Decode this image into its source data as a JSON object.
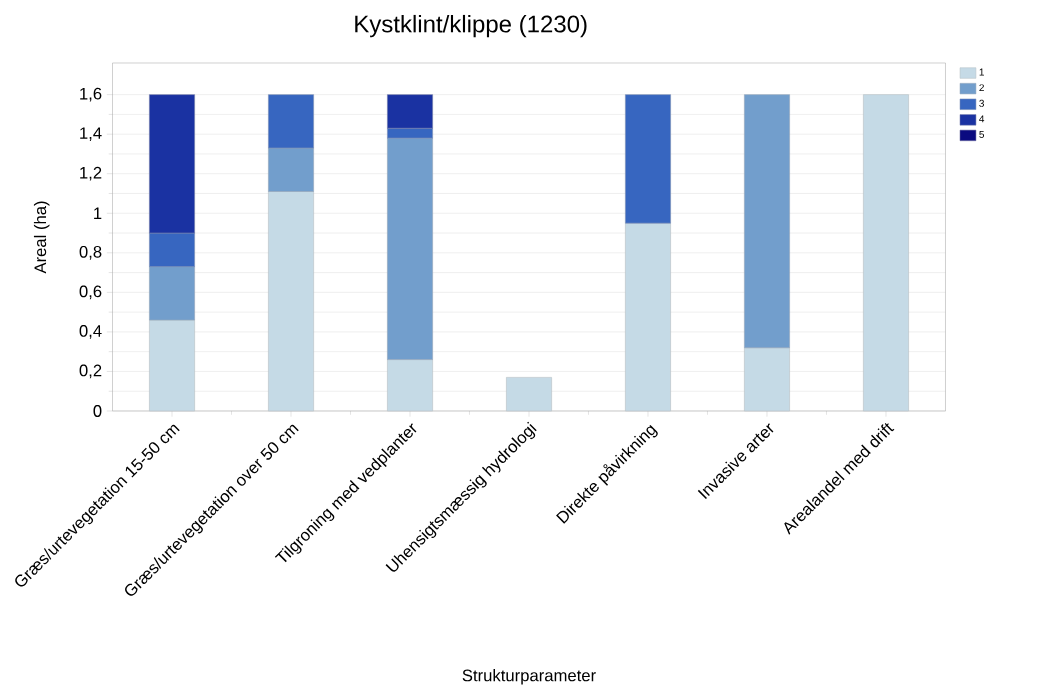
{
  "chart_data": {
    "type": "bar",
    "title": "Kystklint/klippe (1230)",
    "xlabel": "Strukturparameter",
    "ylabel": "Areal (ha)",
    "categories": [
      "Græs/urtevegetation 15-50 cm",
      "Græs/urtevegetation over 50 cm",
      "Tilgroning med vedplanter",
      "Uhensigtsmæssig hydrologi",
      "Direkte påvirkning",
      "Invasive arter",
      "Arealandel med drift"
    ],
    "stacked": true,
    "series": [
      {
        "name": "1",
        "color": "#c5dae6",
        "values": [
          0.46,
          1.11,
          0.26,
          0.17,
          0.95,
          0.32,
          1.6
        ]
      },
      {
        "name": "2",
        "color": "#729ecc",
        "values": [
          0.27,
          0.22,
          1.12,
          null,
          null,
          1.28,
          null
        ]
      },
      {
        "name": "3",
        "color": "#3766c0",
        "values": [
          0.17,
          0.27,
          0.05,
          null,
          0.65,
          null,
          null
        ]
      },
      {
        "name": "4",
        "color": "#1a32a2",
        "values": [
          0.7,
          null,
          0.17,
          null,
          null,
          null,
          null
        ]
      },
      {
        "name": "5",
        "color": "#0a0a80",
        "values": [
          null,
          null,
          null,
          null,
          null,
          null,
          null
        ]
      }
    ],
    "ylim": [
      0,
      1.76
    ],
    "yticks": [
      0,
      {
        "value": 0.2,
        "label": "0,2"
      },
      {
        "value": 0.4,
        "label": "0,4"
      },
      {
        "value": 0.6,
        "label": "0,6"
      },
      {
        "value": 0.8,
        "label": "0,8"
      },
      1,
      {
        "value": 1.2,
        "label": "1,2"
      },
      {
        "value": 1.4,
        "label": "1,4"
      },
      {
        "value": 1.6,
        "label": "1,6"
      }
    ],
    "grid": "y",
    "legend": "top right"
  }
}
